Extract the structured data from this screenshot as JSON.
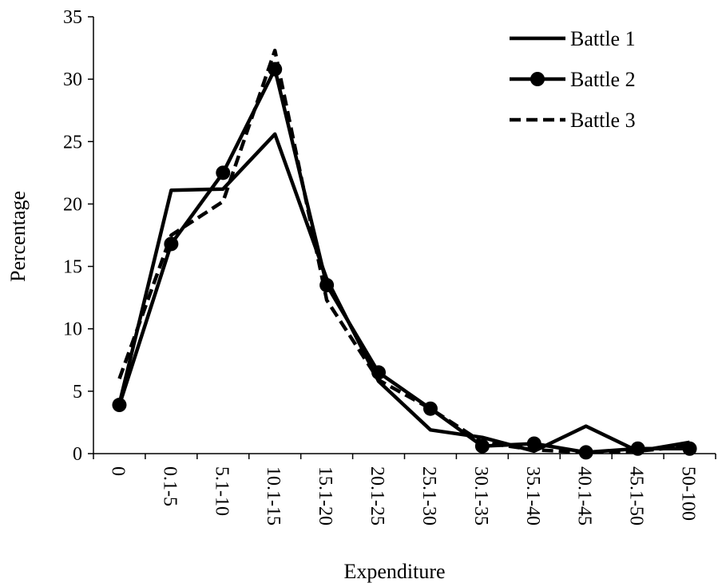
{
  "chart_data": {
    "type": "line",
    "title": "",
    "xlabel": "Expenditure",
    "ylabel": "Percentage",
    "categories": [
      "0",
      "0.1-5",
      "5.1-10",
      "10.1-15",
      "15.1-20",
      "20.1-25",
      "25.1-30",
      "30.1-35",
      "35.1-40",
      "40.1-45",
      "45.1-50",
      "50-100"
    ],
    "ylim": [
      0,
      35
    ],
    "yticks": [
      0,
      5,
      10,
      15,
      20,
      25,
      30,
      35
    ],
    "grid": false,
    "legend_position": "top-right",
    "line_color": "#000000",
    "series": [
      {
        "name": "Battle 1",
        "style": "solid",
        "marker": "none",
        "values": [
          4.0,
          21.1,
          21.2,
          25.6,
          14.0,
          5.8,
          1.9,
          1.3,
          0.2,
          2.2,
          0.2,
          0.9
        ]
      },
      {
        "name": "Battle 2",
        "style": "solid",
        "marker": "circle",
        "values": [
          3.9,
          16.8,
          22.5,
          30.8,
          13.5,
          6.5,
          3.6,
          0.6,
          0.8,
          0.1,
          0.4,
          0.4
        ]
      },
      {
        "name": "Battle 3",
        "style": "dashed",
        "marker": "none",
        "values": [
          6.0,
          17.5,
          20.2,
          32.3,
          12.3,
          5.9,
          3.6,
          0.9,
          0.3,
          0.1,
          0.2,
          0.6
        ]
      }
    ]
  }
}
